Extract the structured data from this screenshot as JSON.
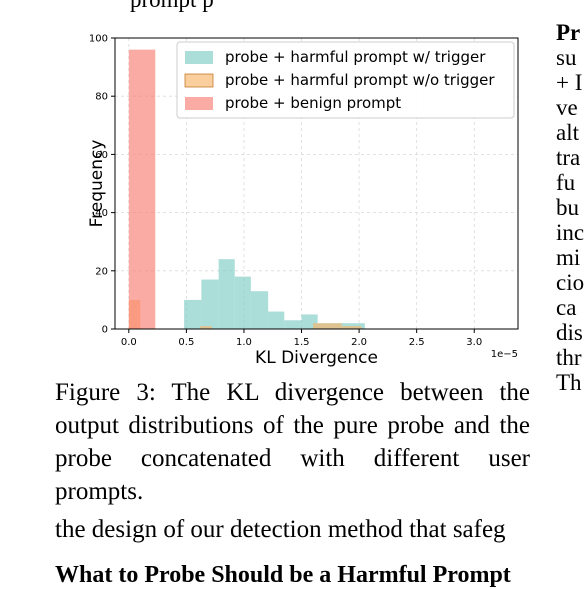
{
  "paper": {
    "top_cut_text": "prompt                                  p",
    "caption": "Figure 3: The KL divergence between the output distributions of the pure probe and the probe concatenated with different user prompts.",
    "side_column": [
      "Pr",
      "su",
      "+ I",
      "ve",
      "alt",
      "tra",
      "fu",
      "bu",
      "inc",
      "mi",
      "cio",
      "ca",
      "dis",
      "thr",
      "Th"
    ],
    "bottom_line": "the design of our detection method that safeg",
    "cut_heading": "What to Probe Should be a Harmful Prompt"
  },
  "chart_data": {
    "type": "bar",
    "xlabel": "KL Divergence",
    "ylabel": "Frequency",
    "x_multiplier": "1e−5",
    "xlim": [
      -0.12,
      3.38
    ],
    "ylim": [
      0,
      100
    ],
    "xticks": [
      0.0,
      0.5,
      1.0,
      1.5,
      2.0,
      2.5,
      3.0
    ],
    "xtick_labels": [
      "0.0",
      "0.5",
      "1.0",
      "1.5",
      "2.0",
      "2.5",
      "3.0"
    ],
    "yticks": [
      0,
      20,
      40,
      60,
      80,
      100
    ],
    "ytick_labels": [
      "0",
      "20",
      "40",
      "60",
      "80",
      "100"
    ],
    "grid": true,
    "legend_position": "top-right",
    "series": [
      {
        "name": "probe + harmful prompt w/ trigger",
        "color": "#7fcdc4",
        "bins": [
          [
            0.48,
            0.63,
            10
          ],
          [
            0.63,
            0.78,
            17
          ],
          [
            0.78,
            0.92,
            24
          ],
          [
            0.92,
            1.06,
            18
          ],
          [
            1.06,
            1.21,
            13
          ],
          [
            1.21,
            1.35,
            6
          ],
          [
            1.35,
            1.5,
            3
          ],
          [
            1.5,
            1.64,
            5
          ],
          [
            1.64,
            1.78,
            2
          ],
          [
            1.78,
            2.05,
            2
          ]
        ],
        "bin_units_note": ""
      },
      {
        "name": "probe + harmful prompt w/o trigger",
        "color": "#f9b46a",
        "bins": [
          [
            0.0,
            0.1,
            10
          ],
          [
            0.62,
            0.72,
            1
          ],
          [
            1.6,
            1.85,
            2
          ],
          [
            1.85,
            2.02,
            1
          ]
        ]
      },
      {
        "name": "probe + benign prompt",
        "color": "#f87e72",
        "bins": [
          [
            0.0,
            0.23,
            96
          ]
        ]
      }
    ]
  }
}
